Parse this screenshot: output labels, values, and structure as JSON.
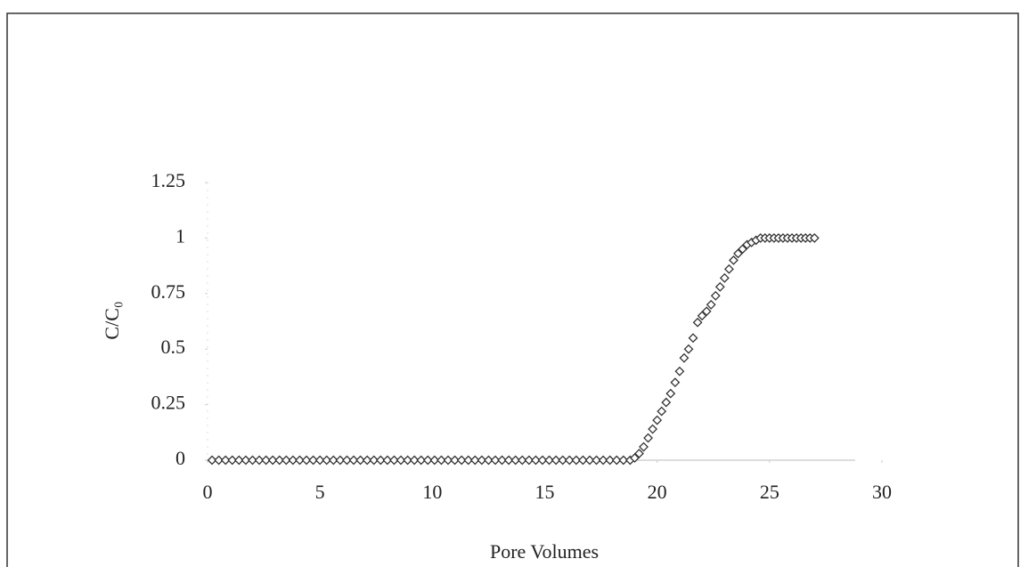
{
  "chart_data": {
    "type": "scatter",
    "x_label": "Pore Volumes",
    "y_label": "C/C₀",
    "series": [
      {
        "color": "#333333",
        "x": [
          0.2,
          0.5,
          0.8,
          1.1,
          1.4,
          1.7,
          2.0,
          2.3,
          2.6,
          2.9,
          3.2,
          3.5,
          3.8,
          4.1,
          4.4,
          4.7,
          5.0,
          5.3,
          5.6,
          5.9,
          6.2,
          6.5,
          6.8,
          7.1,
          7.4,
          7.7,
          8.0,
          8.3,
          8.6,
          8.9,
          9.2,
          9.5,
          9.8,
          10.1,
          10.4,
          10.7,
          11.0,
          11.3,
          11.6,
          11.9,
          12.2,
          12.5,
          12.8,
          13.1,
          13.4,
          13.7,
          14.0,
          14.3,
          14.6,
          14.9,
          15.2,
          15.5,
          15.8,
          16.1,
          16.4,
          16.7,
          17.0,
          17.3,
          17.6,
          17.9,
          18.2,
          18.5,
          18.8,
          19.0,
          19.2,
          19.4,
          19.6,
          19.8,
          20.0,
          20.2,
          20.4,
          20.6,
          20.8,
          21.0,
          21.2,
          21.4,
          21.6,
          21.8,
          22.0,
          22.2,
          22.4,
          22.6,
          22.8,
          23.0,
          23.2,
          23.4,
          23.6,
          23.8,
          24.0,
          24.2,
          24.4,
          24.6,
          24.8,
          25.0,
          25.2,
          25.4,
          25.6,
          25.8,
          26.0,
          26.2,
          26.4,
          26.6,
          26.8,
          27.0
        ],
        "values": [
          0,
          0,
          0,
          0,
          0,
          0,
          0,
          0,
          0,
          0,
          0,
          0,
          0,
          0,
          0,
          0,
          0,
          0,
          0,
          0,
          0,
          0,
          0,
          0,
          0,
          0,
          0,
          0,
          0,
          0,
          0,
          0,
          0,
          0,
          0,
          0,
          0,
          0,
          0,
          0,
          0,
          0,
          0,
          0,
          0,
          0,
          0,
          0,
          0,
          0,
          0,
          0,
          0,
          0,
          0,
          0,
          0,
          0,
          0,
          0,
          0,
          0,
          0,
          0.01,
          0.03,
          0.06,
          0.1,
          0.14,
          0.18,
          0.22,
          0.26,
          0.3,
          0.35,
          0.4,
          0.46,
          0.5,
          0.55,
          0.62,
          0.65,
          0.67,
          0.7,
          0.74,
          0.78,
          0.82,
          0.86,
          0.9,
          0.93,
          0.95,
          0.97,
          0.98,
          0.99,
          1,
          1,
          1,
          1,
          1,
          1,
          1,
          1,
          1,
          1,
          1,
          1,
          1
        ]
      }
    ],
    "xlim": [
      0,
      30
    ],
    "xticks": [
      0,
      5,
      10,
      15,
      20,
      25,
      30
    ],
    "ylim": [
      0,
      1.25
    ],
    "yticks": [
      0,
      0.25,
      0.5,
      0.75,
      1,
      1.25
    ],
    "grid": false
  }
}
